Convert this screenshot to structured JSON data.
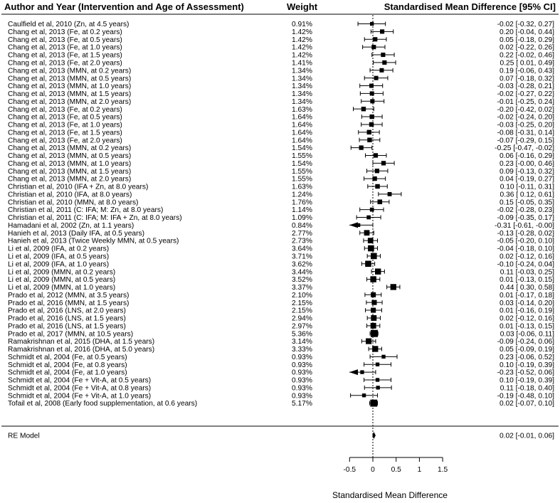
{
  "chart_data": {
    "type": "forest",
    "headers": {
      "study": "Author and Year (Intervention and Age of Assessment)",
      "weight": "Weight",
      "effect": "Standardised Mean Difference [95% CI]"
    },
    "xlabel": "Standardised Mean Difference",
    "xlim": [
      -0.5,
      1.5
    ],
    "xticks": [
      -0.5,
      0,
      0.5,
      1,
      1.5
    ],
    "xtick_labels": [
      "-0.5",
      "0",
      "0.5",
      "1",
      "1.5"
    ],
    "reference_line": 0,
    "rows": [
      {
        "label": "Caulfield et al, 2010 (Zn, at 4.5 years)",
        "weight": "0.91%",
        "est": -0.02,
        "lo": -0.32,
        "hi": 0.27,
        "ci_text": "-0.02 [-0.32,  0.27]"
      },
      {
        "label": "Chang et al, 2013 (Fe, at 0.2 years)",
        "weight": "1.42%",
        "est": 0.2,
        "lo": -0.04,
        "hi": 0.44,
        "ci_text": "0.20 [-0.04,  0.44]"
      },
      {
        "label": "Chang et al, 2013 (Fe, at 0.5 years)",
        "weight": "1.42%",
        "est": 0.05,
        "lo": -0.18,
        "hi": 0.29,
        "ci_text": "0.05 [-0.18,  0.29]"
      },
      {
        "label": "Chang et al, 2013 (Fe, at 1.0 years)",
        "weight": "1.42%",
        "est": 0.02,
        "lo": -0.22,
        "hi": 0.26,
        "ci_text": "0.02 [-0.22,  0.26]"
      },
      {
        "label": "Chang et al, 2013 (Fe, at 1.5 years)",
        "weight": "1.42%",
        "est": 0.22,
        "lo": -0.02,
        "hi": 0.46,
        "ci_text": "0.22 [-0.02,  0.46]"
      },
      {
        "label": "Chang et al, 2013 (Fe, at 2.0 years)",
        "weight": "1.41%",
        "est": 0.25,
        "lo": 0.01,
        "hi": 0.49,
        "ci_text": "0.25 [ 0.01,  0.49]"
      },
      {
        "label": "Chang et al, 2013 (MMN, at 0.2 years)",
        "weight": "1.34%",
        "est": 0.19,
        "lo": -0.06,
        "hi": 0.43,
        "ci_text": "0.19 [-0.06,  0.43]"
      },
      {
        "label": "Chang et al, 2013 (MMN, at 0.5 years)",
        "weight": "1.34%",
        "est": 0.07,
        "lo": -0.18,
        "hi": 0.32,
        "ci_text": "0.07 [-0.18,  0.32]"
      },
      {
        "label": "Chang et al, 2013 (MMN, at 1.0 years)",
        "weight": "1.34%",
        "est": -0.03,
        "lo": -0.28,
        "hi": 0.21,
        "ci_text": "-0.03 [-0.28,  0.21]"
      },
      {
        "label": "Chang et al, 2013 (MMN, at 1.5 years)",
        "weight": "1.34%",
        "est": -0.02,
        "lo": -0.27,
        "hi": 0.22,
        "ci_text": "-0.02 [-0.27,  0.22]"
      },
      {
        "label": "Chang et al, 2013 (MMN, at 2.0 years)",
        "weight": "1.34%",
        "est": -0.01,
        "lo": -0.25,
        "hi": 0.24,
        "ci_text": "-0.01 [-0.25,  0.24]"
      },
      {
        "label": "Chang et al, 2013 (Fe, at 0.2 years)",
        "weight": "1.63%",
        "est": -0.2,
        "lo": -0.42,
        "hi": 0.02,
        "ci_text": "-0.20 [-0.42,  0.02]"
      },
      {
        "label": "Chang et al, 2013 (Fe, at 0.5 years)",
        "weight": "1.64%",
        "est": -0.02,
        "lo": -0.24,
        "hi": 0.2,
        "ci_text": "-0.02 [-0.24,  0.20]"
      },
      {
        "label": "Chang et al, 2013 (Fe, at 1.0 years)",
        "weight": "1.64%",
        "est": -0.03,
        "lo": -0.25,
        "hi": 0.2,
        "ci_text": "-0.03 [-0.25,  0.20]"
      },
      {
        "label": "Chang et al, 2013 (Fe, at 1.5 years)",
        "weight": "1.64%",
        "est": -0.08,
        "lo": -0.31,
        "hi": 0.14,
        "ci_text": "-0.08 [-0.31,  0.14]"
      },
      {
        "label": "Chang et al, 2013 (Fe, at 2.0 years)",
        "weight": "1.64%",
        "est": -0.07,
        "lo": -0.29,
        "hi": 0.15,
        "ci_text": "-0.07 [-0.29,  0.15]"
      },
      {
        "label": "Chang et al, 2013 (MMN, at 0.2 years)",
        "weight": "1.54%",
        "est": -0.25,
        "lo": -0.47,
        "hi": -0.02,
        "ci_text": "-0.25 [-0.47, -0.02]"
      },
      {
        "label": "Chang et al, 2013 (MMN, at 0.5 years)",
        "weight": "1.55%",
        "est": 0.06,
        "lo": -0.16,
        "hi": 0.29,
        "ci_text": "0.06 [-0.16,  0.29]"
      },
      {
        "label": "Chang et al, 2013 (MMN, at 1.0 years)",
        "weight": "1.54%",
        "est": 0.23,
        "lo": -0.0,
        "hi": 0.46,
        "ci_text": "0.23 [-0.00,  0.46]"
      },
      {
        "label": "Chang et al, 2013 (MMN, at 1.5 years)",
        "weight": "1.55%",
        "est": 0.09,
        "lo": -0.13,
        "hi": 0.32,
        "ci_text": "0.09 [-0.13,  0.32]"
      },
      {
        "label": "Chang et al, 2013 (MMN, at 2.0 years)",
        "weight": "1.55%",
        "est": 0.04,
        "lo": -0.19,
        "hi": 0.27,
        "ci_text": "0.04 [-0.19,  0.27]"
      },
      {
        "label": "Christian et al, 2010 (IFA + Zn, at 8.0 years)",
        "weight": "1.63%",
        "est": 0.1,
        "lo": -0.11,
        "hi": 0.31,
        "ci_text": "0.10 [-0.11,  0.31]"
      },
      {
        "label": "Christian et al, 2010 (IFA, at 8.0 years)",
        "weight": "1.24%",
        "est": 0.36,
        "lo": 0.12,
        "hi": 0.61,
        "ci_text": "0.36 [ 0.12,  0.61]"
      },
      {
        "label": "Christian et al, 2010 (MMN, at 8.0 years)",
        "weight": "1.76%",
        "est": 0.15,
        "lo": -0.05,
        "hi": 0.35,
        "ci_text": "0.15 [-0.05,  0.35]"
      },
      {
        "label": "Christian et al, 2011 (C: IFA; M: Zn, at 8.0 years)",
        "weight": "1.14%",
        "est": -0.02,
        "lo": -0.28,
        "hi": 0.23,
        "ci_text": "-0.02 [-0.28,  0.23]"
      },
      {
        "label": "Christian et al, 2011 (C: IFA; M: IFA + Zn, at 8.0 years)",
        "weight": "1.09%",
        "est": -0.09,
        "lo": -0.35,
        "hi": 0.17,
        "ci_text": "-0.09 [-0.35,  0.17]"
      },
      {
        "label": "Hamadani et al, 2002 (Zn, at 1.1 years)",
        "weight": "0.84%",
        "est": -0.31,
        "lo": -0.61,
        "hi": -0.0,
        "ci_text": "-0.31 [-0.61, -0.00]",
        "arrow_left": true
      },
      {
        "label": "Hanieh et al, 2013 (Daily IFA, at 0.5 years)",
        "weight": "2.77%",
        "est": -0.13,
        "lo": -0.28,
        "hi": 0.02,
        "ci_text": "-0.13 [-0.28,  0.02]"
      },
      {
        "label": "Hanieh et al, 2013 (Twice Weekly MMN, at 0.5 years)",
        "weight": "2.73%",
        "est": -0.05,
        "lo": -0.2,
        "hi": 0.1,
        "ci_text": "-0.05 [-0.20,  0.10]"
      },
      {
        "label": "Li et al, 2009 (IFA, at 0.2 years)",
        "weight": "3.64%",
        "est": -0.04,
        "lo": -0.18,
        "hi": 0.1,
        "ci_text": "-0.04 [-0.18,  0.10]"
      },
      {
        "label": "Li et al, 2009 (IFA, at 0.5 years)",
        "weight": "3.71%",
        "est": 0.02,
        "lo": -0.12,
        "hi": 0.16,
        "ci_text": "0.02 [-0.12,  0.16]"
      },
      {
        "label": "Li et al, 2009 (IFA, at 1.0 years)",
        "weight": "3.62%",
        "est": -0.1,
        "lo": -0.24,
        "hi": 0.04,
        "ci_text": "-0.10 [-0.24,  0.04]"
      },
      {
        "label": "Li et al, 2009 (MMN, at 0.2 years)",
        "weight": "3.44%",
        "est": 0.11,
        "lo": -0.03,
        "hi": 0.25,
        "ci_text": "0.11 [-0.03,  0.25]"
      },
      {
        "label": "Li et al, 2009 (MMN, at 0.5 years)",
        "weight": "3.52%",
        "est": 0.01,
        "lo": -0.13,
        "hi": 0.15,
        "ci_text": "0.01 [-0.13,  0.15]"
      },
      {
        "label": "Li et al, 2009 (MMN, at 1.0 years)",
        "weight": "3.37%",
        "est": 0.44,
        "lo": 0.3,
        "hi": 0.58,
        "ci_text": "0.44 [ 0.30,  0.58]"
      },
      {
        "label": "Prado et al, 2012 (MMN, at 3.5 years)",
        "weight": "2.10%",
        "est": 0.01,
        "lo": -0.17,
        "hi": 0.18,
        "ci_text": "0.01 [-0.17,  0.18]"
      },
      {
        "label": "Prado et al, 2016 (MMN, at 1.5 years)",
        "weight": "2.15%",
        "est": 0.03,
        "lo": -0.14,
        "hi": 0.2,
        "ci_text": "0.03 [-0.14,  0.20]"
      },
      {
        "label": "Prado et al, 2016 (LNS, at 2.0 years)",
        "weight": "2.15%",
        "est": 0.01,
        "lo": -0.16,
        "hi": 0.19,
        "ci_text": "0.01 [-0.16,  0.19]"
      },
      {
        "label": "Prado et al, 2016 (LNS, at 1.5 years)",
        "weight": "2.94%",
        "est": 0.02,
        "lo": -0.12,
        "hi": 0.16,
        "ci_text": "0.02 [-0.12,  0.16]"
      },
      {
        "label": "Prado et al, 2016 (LNS, at 1.5 years)",
        "weight": "2.97%",
        "est": 0.01,
        "lo": -0.13,
        "hi": 0.15,
        "ci_text": "0.01 [-0.13,  0.15]"
      },
      {
        "label": "Prado et al, 2017 (MMN, at 10.5 years)",
        "weight": "5.36%",
        "est": 0.03,
        "lo": -0.06,
        "hi": 0.11,
        "ci_text": "0.03 [-0.06,  0.11]"
      },
      {
        "label": "Ramakrishnan et al, 2015 (DHA, at 1.5 years)",
        "weight": "3.14%",
        "est": -0.09,
        "lo": -0.24,
        "hi": 0.06,
        "ci_text": "-0.09 [-0.24,  0.06]"
      },
      {
        "label": "Ramakrishnan et al, 2016 (DHA, at 5.0 years)",
        "weight": "3.33%",
        "est": 0.05,
        "lo": -0.09,
        "hi": 0.19,
        "ci_text": "0.05 [-0.09,  0.19]"
      },
      {
        "label": "Schmidt et al, 2004 (Fe, at 0.5 years)",
        "weight": "0.93%",
        "est": 0.23,
        "lo": -0.06,
        "hi": 0.52,
        "ci_text": "0.23 [-0.06,  0.52]"
      },
      {
        "label": "Schmidt et al, 2004 (Fe, at 0.8 years)",
        "weight": "0.93%",
        "est": 0.1,
        "lo": -0.19,
        "hi": 0.39,
        "ci_text": "0.10 [-0.19,  0.39]"
      },
      {
        "label": "Schmidt et al, 2004 (Fe, at 1.0 years)",
        "weight": "0.93%",
        "est": -0.23,
        "lo": -0.52,
        "hi": 0.06,
        "ci_text": "-0.23 [-0.52,  0.06]",
        "arrow_left": true
      },
      {
        "label": "Schmidt et al, 2004 (Fe + Vit-A, at 0.5 years)",
        "weight": "0.93%",
        "est": 0.1,
        "lo": -0.19,
        "hi": 0.39,
        "ci_text": "0.10 [-0.19,  0.39]"
      },
      {
        "label": "Schmidt et al, 2004 (Fe + Vit-A, at 0.8 years)",
        "weight": "0.93%",
        "est": 0.11,
        "lo": -0.18,
        "hi": 0.4,
        "ci_text": "0.11 [-0.18,  0.40]"
      },
      {
        "label": "Schmidt et al, 2004 (Fe + Vit-A, at 1.0 years)",
        "weight": "0.93%",
        "est": -0.19,
        "lo": -0.48,
        "hi": 0.1,
        "ci_text": "-0.19 [-0.48,  0.10]"
      },
      {
        "label": "Tofail et al, 2008 (Early food supplementation, at 0.6 years)",
        "weight": "5.17%",
        "est": 0.02,
        "lo": -0.07,
        "hi": 0.1,
        "ci_text": "0.02 [-0.07,  0.10]"
      }
    ],
    "summary": {
      "label": "RE Model",
      "est": 0.02,
      "lo": -0.01,
      "hi": 0.06,
      "ci_text": "0.02 [-0.01,  0.06]"
    }
  }
}
